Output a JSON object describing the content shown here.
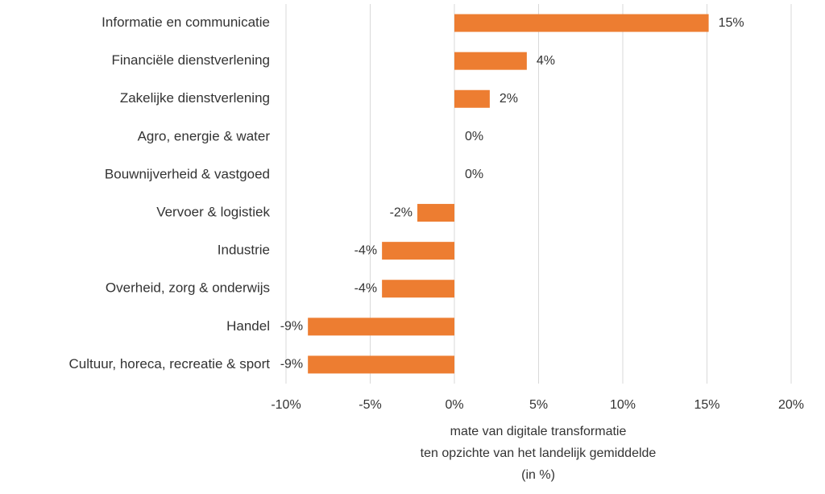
{
  "chart_data": {
    "type": "hbar",
    "categories": [
      "Informatie en communicatie",
      "Financiële dienstverlening",
      "Zakelijke dienstverlening",
      "Agro, energie & water",
      "Bouwnijverheid & vastgoed",
      "Vervoer & logistiek",
      "Industrie",
      "Overheid, zorg & onderwijs",
      "Handel",
      "Cultuur, horeca, recreatie & sport"
    ],
    "values": [
      15.1,
      4.3,
      2.1,
      0,
      0,
      -2.2,
      -4.3,
      -4.3,
      -8.7,
      -8.7
    ],
    "value_labels": [
      "15%",
      "4%",
      "2%",
      "0%",
      "0%",
      "-2%",
      "-4%",
      "-4%",
      "-9%",
      "-9%"
    ],
    "color": "#ed7d31",
    "xlim": [
      -10,
      20
    ],
    "xticks": [
      {
        "value": -10,
        "label": "-10%"
      },
      {
        "value": -5,
        "label": "-5%"
      },
      {
        "value": 0,
        "label": "0%"
      },
      {
        "value": 5,
        "label": "5%"
      },
      {
        "value": 10,
        "label": "10%"
      },
      {
        "value": 15,
        "label": "15%"
      },
      {
        "value": 20,
        "label": "20%"
      }
    ],
    "x_label": [
      "mate van digitale transformatie",
      "ten opzichte van het landelijk gemiddelde",
      "(in %)"
    ],
    "grid": true
  }
}
